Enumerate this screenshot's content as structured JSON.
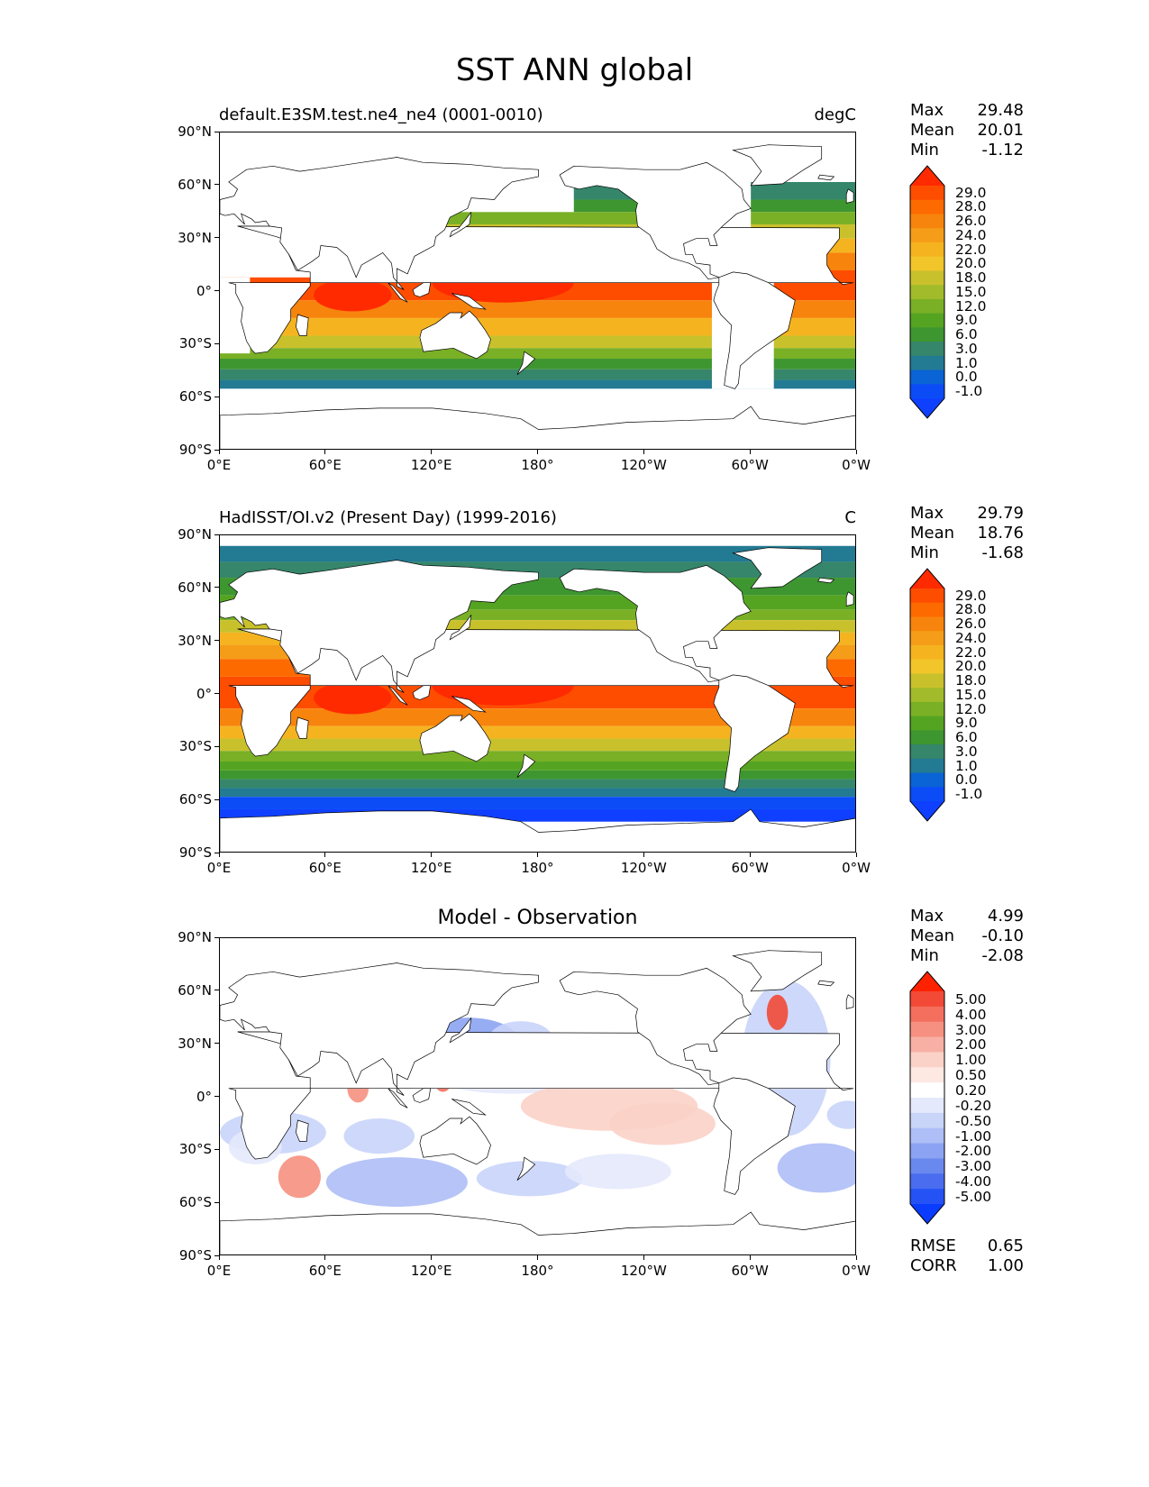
{
  "title": "SST ANN global",
  "panels": [
    {
      "id": "test",
      "left_title": "default.E3SM.test.ne4_ne4 (0001-0010)",
      "right_title": "degC",
      "stats": [
        {
          "label": "Max",
          "value": "29.48"
        },
        {
          "label": "Mean",
          "value": "20.01"
        },
        {
          "label": "Min",
          "value": "-1.12"
        }
      ],
      "colorbar_labels": [
        "29.0",
        "28.0",
        "26.0",
        "24.0",
        "22.0",
        "20.0",
        "18.0",
        "15.0",
        "12.0",
        "9.0",
        "6.0",
        "3.0",
        "1.0",
        "0.0",
        "-1.0"
      ],
      "colorbar_colors": [
        "#ff2a00",
        "#ff4d00",
        "#fd6a00",
        "#f7840c",
        "#f59d18",
        "#f5b41f",
        "#f2c62a",
        "#c9c12c",
        "#a2bb2a",
        "#79b026",
        "#55a421",
        "#3e9630",
        "#35866a",
        "#237a93",
        "#0a64d5",
        "#0b4cf7",
        "#1040ff"
      ]
    },
    {
      "id": "ref",
      "left_title": "HadISST/OI.v2 (Present Day) (1999-2016)",
      "right_title": "C",
      "stats": [
        {
          "label": "Max",
          "value": "29.79"
        },
        {
          "label": "Mean",
          "value": "18.76"
        },
        {
          "label": "Min",
          "value": "-1.68"
        }
      ],
      "colorbar_labels": [
        "29.0",
        "28.0",
        "26.0",
        "24.0",
        "22.0",
        "20.0",
        "18.0",
        "15.0",
        "12.0",
        "9.0",
        "6.0",
        "3.0",
        "1.0",
        "0.0",
        "-1.0"
      ],
      "colorbar_colors": [
        "#ff2a00",
        "#ff4d00",
        "#fd6a00",
        "#f7840c",
        "#f59d18",
        "#f5b41f",
        "#f2c62a",
        "#c9c12c",
        "#a2bb2a",
        "#79b026",
        "#55a421",
        "#3e9630",
        "#35866a",
        "#237a93",
        "#0a64d5",
        "#0b4cf7",
        "#1040ff"
      ]
    },
    {
      "id": "diff",
      "center_title": "Model - Observation",
      "stats": [
        {
          "label": "Max",
          "value": "4.99"
        },
        {
          "label": "Mean",
          "value": "-0.10"
        },
        {
          "label": "Min",
          "value": "-2.08"
        }
      ],
      "extra_stats": [
        {
          "label": "RMSE",
          "value": "0.65"
        },
        {
          "label": "CORR",
          "value": "1.00"
        }
      ],
      "colorbar_labels": [
        "5.00",
        "4.00",
        "3.00",
        "2.00",
        "1.00",
        "0.50",
        "0.20",
        "-0.20",
        "-0.50",
        "-1.00",
        "-2.00",
        "-3.00",
        "-4.00",
        "-5.00"
      ],
      "colorbar_colors": [
        "#ff2200",
        "#f24a36",
        "#f46f5e",
        "#f69080",
        "#f8b0a4",
        "#fbd2c8",
        "#fde8e2",
        "#ffffff",
        "#e4e9fc",
        "#c9d4f9",
        "#aebef6",
        "#8ba3f2",
        "#6a89ee",
        "#4a6df0",
        "#2452f4",
        "#0a3cff"
      ]
    }
  ],
  "axes": {
    "x_ticks": [
      "0°E",
      "60°E",
      "120°E",
      "180°",
      "120°W",
      "60°W",
      "0°W"
    ],
    "y_ticks": [
      "90°N",
      "60°N",
      "30°N",
      "0°",
      "30°S",
      "60°S",
      "90°S"
    ]
  },
  "chart_data": [
    {
      "type": "heatmap",
      "title": "default.E3SM.test.ne4_ne4 (0001-0010)",
      "units": "degC",
      "x_range": [
        0,
        360
      ],
      "y_range": [
        -90,
        90
      ],
      "levels": [
        -1.0,
        0.0,
        1.0,
        3.0,
        6.0,
        9.0,
        12.0,
        15.0,
        18.0,
        20.0,
        22.0,
        24.0,
        26.0,
        28.0,
        29.0
      ],
      "max": 29.48,
      "mean": 20.01,
      "min": -1.12
    },
    {
      "type": "heatmap",
      "title": "HadISST/OI.v2 (Present Day) (1999-2016)",
      "units": "C",
      "x_range": [
        0,
        360
      ],
      "y_range": [
        -90,
        90
      ],
      "levels": [
        -1.0,
        0.0,
        1.0,
        3.0,
        6.0,
        9.0,
        12.0,
        15.0,
        18.0,
        20.0,
        22.0,
        24.0,
        26.0,
        28.0,
        29.0
      ],
      "max": 29.79,
      "mean": 18.76,
      "min": -1.68
    },
    {
      "type": "heatmap",
      "title": "Model - Observation",
      "x_range": [
        0,
        360
      ],
      "y_range": [
        -90,
        90
      ],
      "levels": [
        -5.0,
        -4.0,
        -3.0,
        -2.0,
        -1.0,
        -0.5,
        -0.2,
        0.2,
        0.5,
        1.0,
        2.0,
        3.0,
        4.0,
        5.0
      ],
      "max": 4.99,
      "mean": -0.1,
      "min": -2.08,
      "rmse": 0.65,
      "corr": 1.0
    }
  ]
}
